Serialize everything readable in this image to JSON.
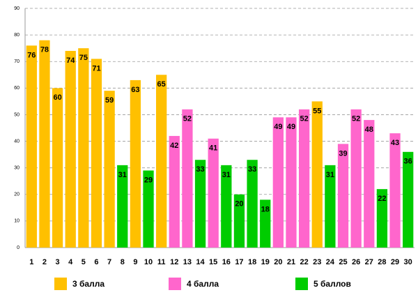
{
  "chart_data": {
    "type": "bar",
    "categories": [
      "1",
      "2",
      "3",
      "4",
      "5",
      "6",
      "7",
      "8",
      "9",
      "10",
      "11",
      "12",
      "13",
      "14",
      "15",
      "16",
      "17",
      "18",
      "19",
      "20",
      "21",
      "22",
      "23",
      "24",
      "25",
      "26",
      "27",
      "28",
      "29",
      "30"
    ],
    "series": [
      {
        "name": "3 балла",
        "color": "#FFC000",
        "values": [
          76,
          78,
          60,
          74,
          75,
          71,
          59,
          null,
          63,
          null,
          65,
          null,
          null,
          null,
          null,
          null,
          null,
          null,
          null,
          null,
          null,
          null,
          55,
          null,
          null,
          null,
          null,
          null,
          null,
          null
        ]
      },
      {
        "name": "4 балла",
        "color": "#FF66CC",
        "values": [
          null,
          null,
          null,
          null,
          null,
          null,
          null,
          null,
          null,
          null,
          null,
          42,
          52,
          null,
          41,
          null,
          null,
          null,
          null,
          49,
          49,
          52,
          null,
          null,
          39,
          52,
          48,
          null,
          43,
          null
        ]
      },
      {
        "name": "5 баллов",
        "color": "#00CC00",
        "values": [
          null,
          null,
          null,
          null,
          null,
          null,
          null,
          31,
          null,
          29,
          null,
          null,
          null,
          33,
          null,
          31,
          20,
          33,
          18,
          null,
          null,
          null,
          null,
          31,
          null,
          null,
          null,
          22,
          null,
          36
        ]
      }
    ],
    "ylim": [
      0,
      90
    ],
    "yticks": [
      0,
      10,
      20,
      30,
      40,
      50,
      60,
      70,
      80,
      90
    ],
    "grid": true
  }
}
